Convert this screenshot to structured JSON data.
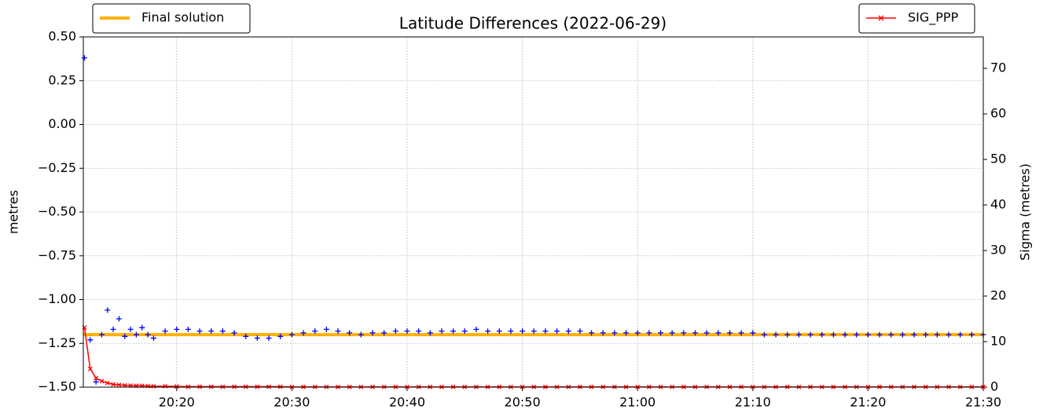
{
  "chart_data": {
    "type": "line",
    "title": "Latitude Differences (2022-06-29)",
    "ylabel": "metres",
    "y2label": "Sigma (metres)",
    "grid": true,
    "x": [
      1212,
      1212.5,
      1213,
      1213.5,
      1214,
      1214.5,
      1215,
      1215.5,
      1216,
      1216.5,
      1217,
      1217.5,
      1218,
      1219,
      1220,
      1221,
      1222,
      1223,
      1224,
      1225,
      1226,
      1227,
      1228,
      1229,
      1230,
      1231,
      1232,
      1233,
      1234,
      1235,
      1236,
      1237,
      1238,
      1239,
      1240,
      1241,
      1242,
      1243,
      1244,
      1245,
      1246,
      1247,
      1248,
      1249,
      1250,
      1251,
      1252,
      1253,
      1254,
      1255,
      1256,
      1257,
      1258,
      1259,
      1260,
      1261,
      1262,
      1263,
      1264,
      1265,
      1266,
      1267,
      1268,
      1269,
      1270,
      1271,
      1272,
      1273,
      1274,
      1275,
      1276,
      1277,
      1278,
      1279,
      1280,
      1281,
      1282,
      1283,
      1284,
      1285,
      1286,
      1287,
      1288,
      1289,
      1290
    ],
    "xlim": [
      1211.9,
      1290
    ],
    "xticks": [
      {
        "value": 1220,
        "label": "20:20"
      },
      {
        "value": 1230,
        "label": "20:30"
      },
      {
        "value": 1240,
        "label": "20:40"
      },
      {
        "value": 1250,
        "label": "20:50"
      },
      {
        "value": 1260,
        "label": "21:00"
      },
      {
        "value": 1270,
        "label": "21:10"
      },
      {
        "value": 1280,
        "label": "21:20"
      },
      {
        "value": 1290,
        "label": "21:30"
      }
    ],
    "ylim": [
      -1.5,
      0.5
    ],
    "yticks": [
      {
        "value": -1.5,
        "label": "−1.50"
      },
      {
        "value": -1.25,
        "label": "−1.25"
      },
      {
        "value": -1.0,
        "label": "−1.00"
      },
      {
        "value": -0.75,
        "label": "−0.75"
      },
      {
        "value": -0.5,
        "label": "−0.50"
      },
      {
        "value": -0.25,
        "label": "−0.25"
      },
      {
        "value": 0,
        "label": "0.00"
      },
      {
        "value": 0.25,
        "label": "0.25"
      },
      {
        "value": 0.5,
        "label": "0.50"
      }
    ],
    "y2lim": [
      0,
      76.9
    ],
    "y2ticks": [
      0,
      10,
      20,
      30,
      40,
      50,
      60,
      70
    ],
    "series": [
      {
        "color": "#0000ff",
        "marker": "+",
        "values": [
          0.38,
          -1.23,
          -1.47,
          -1.2,
          -1.06,
          -1.17,
          -1.11,
          -1.21,
          -1.17,
          -1.2,
          -1.16,
          -1.2,
          -1.22,
          -1.18,
          -1.17,
          -1.17,
          -1.18,
          -1.18,
          -1.18,
          -1.19,
          -1.21,
          -1.22,
          -1.22,
          -1.21,
          -1.2,
          -1.19,
          -1.18,
          -1.17,
          -1.18,
          -1.19,
          -1.2,
          -1.19,
          -1.19,
          -1.18,
          -1.18,
          -1.18,
          -1.19,
          -1.18,
          -1.18,
          -1.18,
          -1.17,
          -1.18,
          -1.18,
          -1.18,
          -1.18,
          -1.18,
          -1.18,
          -1.18,
          -1.18,
          -1.18,
          -1.19,
          -1.19,
          -1.19,
          -1.19,
          -1.19,
          -1.19,
          -1.19,
          -1.19,
          -1.19,
          -1.19,
          -1.19,
          -1.19,
          -1.19,
          -1.19,
          -1.19,
          -1.2,
          -1.2,
          -1.2,
          -1.2,
          -1.2,
          -1.2,
          -1.2,
          -1.2,
          -1.2,
          -1.2,
          -1.2,
          -1.2,
          -1.2,
          -1.2,
          -1.2,
          -1.2,
          -1.2,
          -1.2,
          -1.2,
          -1.2
        ]
      },
      {
        "name": "SIG_PPP",
        "color": "#ff0000",
        "marker": "x",
        "axis": "y2",
        "legend": "upper right",
        "values": [
          13.1,
          4.0,
          2.0,
          1.3,
          0.9,
          0.6,
          0.5,
          0.4,
          0.35,
          0.3,
          0.3,
          0.25,
          0.2,
          0.2,
          0.15,
          0.1,
          0.1,
          0.1,
          0.1,
          0.1,
          0.1,
          0.1,
          0.1,
          0.1,
          0.05,
          0.05,
          0.05,
          0.05,
          0.05,
          0.05,
          0.05,
          0.05,
          0.05,
          0.05,
          0.05,
          0.05,
          0.05,
          0.05,
          0.05,
          0.05,
          0.05,
          0.05,
          0.05,
          0.05,
          0.05,
          0.05,
          0.05,
          0.05,
          0.05,
          0.05,
          0.05,
          0.05,
          0.05,
          0.05,
          0.05,
          0.05,
          0.05,
          0.05,
          0.05,
          0.05,
          0.05,
          0.05,
          0.05,
          0.05,
          0.05,
          0.05,
          0.05,
          0.05,
          0.05,
          0.05,
          0.05,
          0.05,
          0.05,
          0.05,
          0.05,
          0.05,
          0.05,
          0.05,
          0.05,
          0.05,
          0.05,
          0.05,
          0.05,
          0.05,
          0.05
        ]
      }
    ],
    "hlines": [
      {
        "name": "Final solution",
        "value": -1.2,
        "color": "#ffb000",
        "legend": "upper left"
      }
    ]
  }
}
